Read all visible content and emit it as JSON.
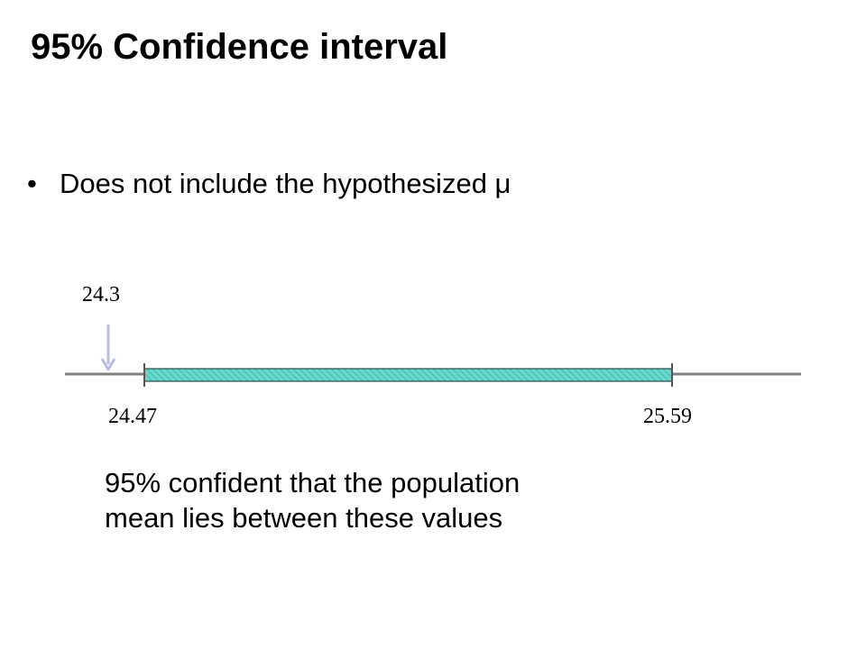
{
  "slide": {
    "title": "95% Confidence interval",
    "bullet_marker": "•",
    "bullet_text": "Does not include the hypothesized μ",
    "caption_line1": "95% confident that the population",
    "caption_line2": "mean lies between these values"
  },
  "number_line": {
    "hypothesized_label": "24.3",
    "lower_label": "24.47",
    "upper_label": "25.59",
    "interval_fill": "#66d9cc",
    "axis_color": "#808080",
    "arrow_color": "#b8bee8"
  }
}
